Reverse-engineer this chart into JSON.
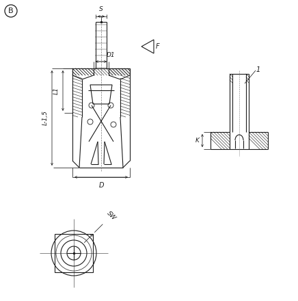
{
  "bg_color": "#ffffff",
  "line_color": "#1a1a1a",
  "figsize": [
    4.36,
    4.4
  ],
  "dpi": 100,
  "label_B": "B",
  "label_S": "S",
  "label_F": "F",
  "label_D1": "D1",
  "label_L1": "L1",
  "label_L15": "L-1,5",
  "label_D": "D",
  "label_SW": "SW",
  "label_K": "K",
  "label_1": "1"
}
